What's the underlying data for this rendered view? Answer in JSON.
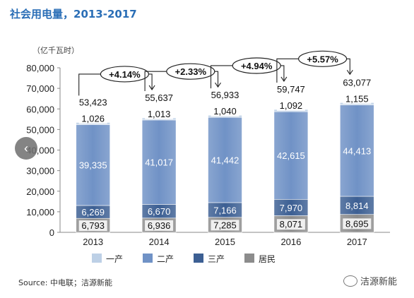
{
  "title": "社会用电量，2013-2017",
  "unit_label": "（亿千瓦时）",
  "source": "Source: 中电联；洁源新能",
  "watermark": "洁源新能",
  "nav": {
    "prev_glyph": "‹"
  },
  "colors": {
    "primary": "#bdd0e6",
    "secondary": "#7092c6",
    "tertiary": "#3c5f93",
    "residential": "#8c8c8c",
    "title": "#2a6eb6"
  },
  "chart_data": {
    "type": "bar",
    "stacked": true,
    "categories": [
      "2013",
      "2014",
      "2015",
      "2016",
      "2017"
    ],
    "series": [
      {
        "name": "居民",
        "values": [
          6793,
          6936,
          7285,
          8071,
          8695
        ],
        "color": "#8c8c8c"
      },
      {
        "name": "三产",
        "values": [
          6269,
          6670,
          7166,
          7970,
          8814
        ],
        "color": "#3c5f93"
      },
      {
        "name": "二产",
        "values": [
          39335,
          41017,
          41442,
          42615,
          44413
        ],
        "color": "#7092c6"
      },
      {
        "name": "一产",
        "values": [
          1026,
          1013,
          1040,
          1092,
          1155
        ],
        "color": "#bdd0e6"
      }
    ],
    "value_labels": {
      "居民": [
        "6,793",
        "6,936",
        "7,285",
        "8,071",
        "8,695"
      ],
      "三产": [
        "6,269",
        "6,670",
        "7,166",
        "7,970",
        "8,814"
      ],
      "二产": [
        "39,335",
        "41,017",
        "41,442",
        "42,615",
        "44,413"
      ],
      "一产": [
        "1,026",
        "1,013",
        "1,040",
        "1,092",
        "1,155"
      ]
    },
    "totals": [
      "53,423",
      "55,637",
      "56,933",
      "59,747",
      "63,077"
    ],
    "total_values": [
      53423,
      55637,
      56933,
      59747,
      63077
    ],
    "growth": [
      "+4.14%",
      "+2.33%",
      "+4.94%",
      "+5.57%"
    ],
    "y_ticks": [
      "0",
      "10,000",
      "20,000",
      "30,000",
      "40,000",
      "50,000",
      "60,000",
      "70,000",
      "80,000"
    ],
    "ylim": [
      0,
      80000
    ],
    "legend": [
      "一产",
      "二产",
      "三产",
      "居民"
    ],
    "legend_placement": "bottom"
  }
}
